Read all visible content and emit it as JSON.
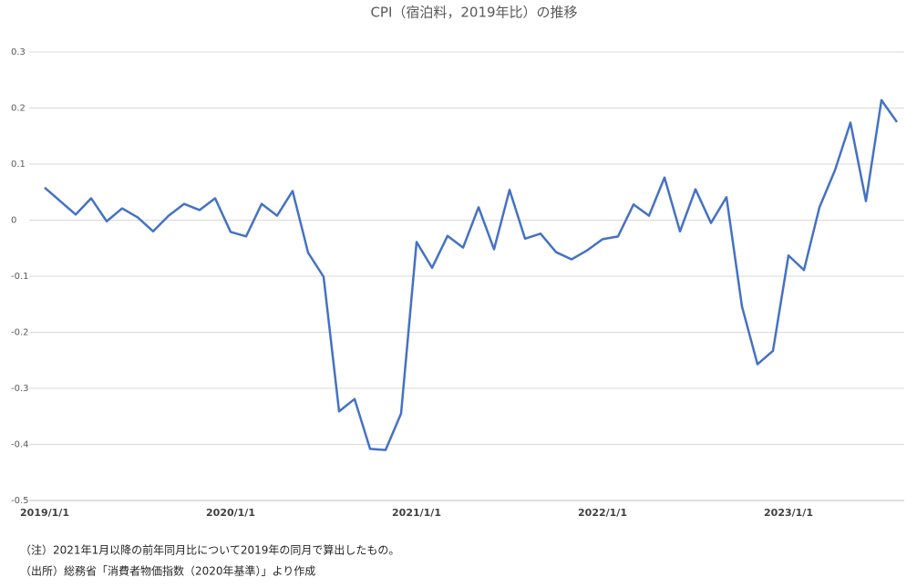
{
  "chart_data": {
    "type": "line",
    "title": "CPI（宿泊料，2019年比）の推移",
    "categories": [
      "2019/1/1",
      null,
      null,
      null,
      null,
      null,
      null,
      null,
      null,
      null,
      null,
      null,
      "2020/1/1",
      null,
      null,
      null,
      null,
      null,
      null,
      null,
      null,
      null,
      null,
      null,
      "2021/1/1",
      null,
      null,
      null,
      null,
      null,
      null,
      null,
      null,
      null,
      null,
      null,
      "2022/1/1",
      null,
      null,
      null,
      null,
      null,
      null,
      null,
      null,
      null,
      null,
      null,
      "2023/1/1",
      null,
      null,
      null,
      null,
      null,
      null,
      null
    ],
    "series": [
      {
        "name": "CPI（宿泊料，2019年比）",
        "color": "#4472c4",
        "values": [
          0.058,
          0.034,
          0.01,
          0.039,
          -0.002,
          0.021,
          0.005,
          -0.02,
          0.008,
          0.029,
          0.018,
          0.039,
          -0.021,
          -0.029,
          0.029,
          0.008,
          0.052,
          -0.058,
          -0.101,
          -0.341,
          -0.319,
          -0.408,
          -0.41,
          -0.345,
          -0.039,
          -0.085,
          -0.028,
          -0.049,
          0.023,
          -0.052,
          0.054,
          -0.033,
          -0.024,
          -0.057,
          -0.07,
          -0.054,
          -0.034,
          -0.029,
          0.028,
          0.008,
          0.076,
          -0.02,
          0.055,
          -0.005,
          0.041,
          -0.154,
          -0.257,
          -0.233,
          -0.063,
          -0.089,
          0.023,
          0.089,
          0.174,
          0.034,
          0.214,
          0.175
        ]
      }
    ],
    "ylim": [
      -0.5,
      0.3
    ],
    "yticks": [
      -0.5,
      -0.4,
      -0.3,
      -0.2,
      -0.1,
      0,
      0.1,
      0.2,
      0.3
    ],
    "grid": true,
    "notes": [
      "（注）2021年1月以降の前年同月比について2019年の同月で算出したもの。",
      "（出所）総務省「消費者物価指数（2020年基準）」より作成"
    ]
  }
}
